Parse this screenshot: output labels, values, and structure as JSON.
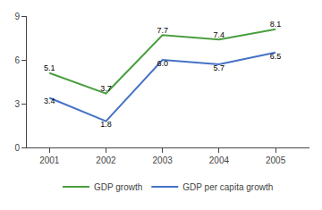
{
  "chart_data": {
    "type": "line",
    "x": [
      2001,
      2002,
      2003,
      2004,
      2005
    ],
    "series": [
      {
        "name": "GDP growth",
        "color": "#4a9e3f",
        "values": [
          5.1,
          3.7,
          7.7,
          7.4,
          8.1
        ]
      },
      {
        "name": "GDP per capita growth",
        "color": "#4472c4",
        "values": [
          3.4,
          1.8,
          6.0,
          5.7,
          6.5
        ],
        "value_labels": [
          "3.4",
          "1.8",
          "6.0",
          "5.7",
          "6.5"
        ]
      }
    ],
    "xlim": [
      2000.6,
      2005.6
    ],
    "xticks": [
      2001,
      2002,
      2003,
      2004,
      2005
    ],
    "ylim": [
      0,
      9
    ],
    "yticks": [
      0,
      3,
      6,
      9
    ],
    "grid": false,
    "legend": "bottom",
    "data_labels": true
  }
}
